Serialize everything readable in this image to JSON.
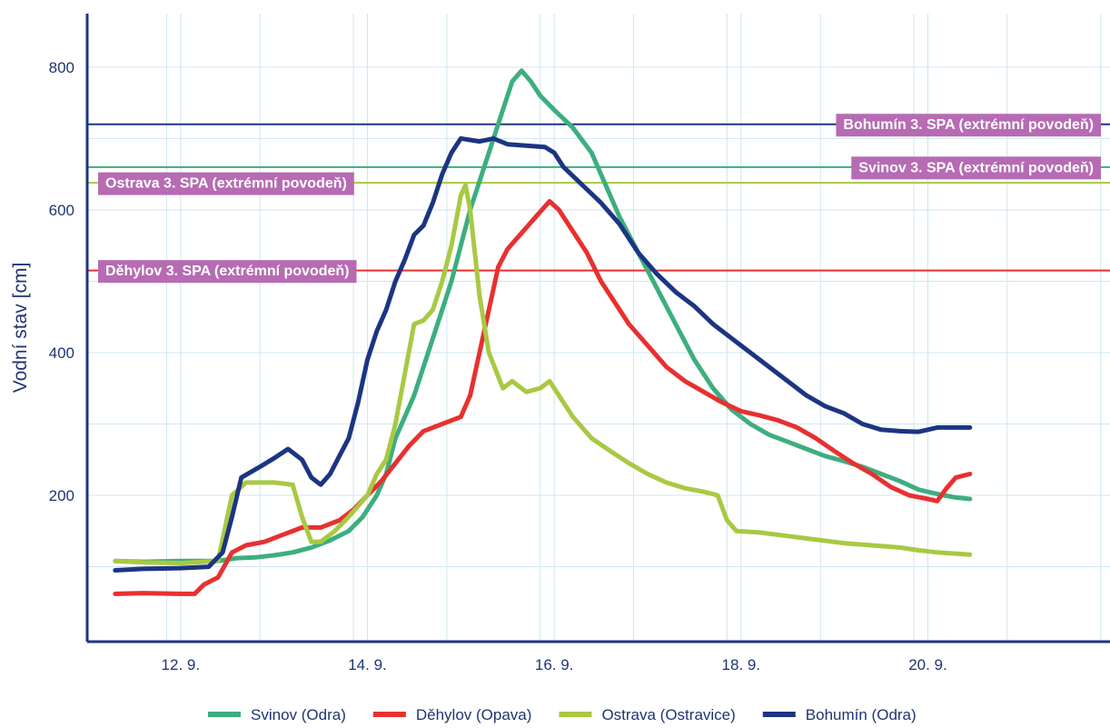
{
  "chart_data": {
    "type": "line",
    "title": "",
    "xlabel": "",
    "ylabel": "Vodní stav [cm]",
    "xlim": [
      11.0,
      21.95
    ],
    "ylim": [
      -5,
      875
    ],
    "x_ticks": [
      {
        "x": 12,
        "label": "12. 9."
      },
      {
        "x": 14,
        "label": "14. 9."
      },
      {
        "x": 16,
        "label": "16. 9."
      },
      {
        "x": 18,
        "label": "18. 9."
      },
      {
        "x": 20,
        "label": "20. 9."
      }
    ],
    "y_ticks": [
      200,
      400,
      600,
      800
    ],
    "x_grid": [
      11.85,
      12.85,
      13.85,
      14.85,
      15.85,
      16.85,
      17.85,
      18.85,
      19.85,
      20.85,
      21.85
    ],
    "y_grid": [
      100,
      300,
      500,
      700
    ],
    "grid": true,
    "legend_position": "bottom",
    "series": [
      {
        "name": "Svinov (Odra)",
        "color": "#3dae7f",
        "points": [
          [
            11.3,
            108
          ],
          [
            11.6,
            107
          ],
          [
            12.0,
            108
          ],
          [
            12.4,
            108
          ],
          [
            12.6,
            112
          ],
          [
            12.8,
            113
          ],
          [
            13.0,
            116
          ],
          [
            13.2,
            120
          ],
          [
            13.4,
            127
          ],
          [
            13.6,
            137
          ],
          [
            13.8,
            150
          ],
          [
            13.95,
            170
          ],
          [
            14.1,
            200
          ],
          [
            14.2,
            230
          ],
          [
            14.3,
            280
          ],
          [
            14.4,
            310
          ],
          [
            14.5,
            340
          ],
          [
            14.6,
            380
          ],
          [
            14.7,
            420
          ],
          [
            14.8,
            460
          ],
          [
            14.9,
            500
          ],
          [
            15.0,
            550
          ],
          [
            15.1,
            600
          ],
          [
            15.2,
            640
          ],
          [
            15.3,
            680
          ],
          [
            15.45,
            740
          ],
          [
            15.55,
            780
          ],
          [
            15.65,
            795
          ],
          [
            15.75,
            780
          ],
          [
            15.85,
            760
          ],
          [
            16.0,
            740
          ],
          [
            16.2,
            715
          ],
          [
            16.4,
            680
          ],
          [
            16.5,
            650
          ],
          [
            16.7,
            590
          ],
          [
            16.9,
            540
          ],
          [
            17.1,
            490
          ],
          [
            17.3,
            440
          ],
          [
            17.5,
            390
          ],
          [
            17.7,
            350
          ],
          [
            17.9,
            320
          ],
          [
            18.1,
            300
          ],
          [
            18.3,
            285
          ],
          [
            18.5,
            275
          ],
          [
            18.7,
            265
          ],
          [
            18.9,
            255
          ],
          [
            19.1,
            248
          ],
          [
            19.3,
            240
          ],
          [
            19.5,
            230
          ],
          [
            19.7,
            220
          ],
          [
            19.9,
            208
          ],
          [
            20.1,
            202
          ],
          [
            20.3,
            197
          ],
          [
            20.45,
            195
          ]
        ]
      },
      {
        "name": "Děhylov (Opava)",
        "color": "#e83030",
        "points": [
          [
            11.3,
            62
          ],
          [
            11.6,
            63
          ],
          [
            12.0,
            62
          ],
          [
            12.15,
            62
          ],
          [
            12.25,
            75
          ],
          [
            12.4,
            85
          ],
          [
            12.55,
            120
          ],
          [
            12.7,
            130
          ],
          [
            12.9,
            135
          ],
          [
            13.1,
            145
          ],
          [
            13.3,
            155
          ],
          [
            13.5,
            155
          ],
          [
            13.7,
            165
          ],
          [
            13.85,
            180
          ],
          [
            14.0,
            200
          ],
          [
            14.15,
            220
          ],
          [
            14.3,
            245
          ],
          [
            14.45,
            270
          ],
          [
            14.6,
            290
          ],
          [
            14.8,
            300
          ],
          [
            15.0,
            310
          ],
          [
            15.1,
            340
          ],
          [
            15.2,
            400
          ],
          [
            15.3,
            460
          ],
          [
            15.4,
            520
          ],
          [
            15.5,
            545
          ],
          [
            15.6,
            560
          ],
          [
            15.7,
            575
          ],
          [
            15.8,
            590
          ],
          [
            15.95,
            612
          ],
          [
            16.05,
            600
          ],
          [
            16.2,
            570
          ],
          [
            16.35,
            540
          ],
          [
            16.5,
            500
          ],
          [
            16.65,
            470
          ],
          [
            16.8,
            440
          ],
          [
            17.0,
            410
          ],
          [
            17.2,
            380
          ],
          [
            17.4,
            360
          ],
          [
            17.6,
            345
          ],
          [
            17.8,
            330
          ],
          [
            18.0,
            318
          ],
          [
            18.2,
            312
          ],
          [
            18.4,
            305
          ],
          [
            18.6,
            295
          ],
          [
            18.8,
            280
          ],
          [
            19.0,
            262
          ],
          [
            19.2,
            245
          ],
          [
            19.4,
            230
          ],
          [
            19.6,
            212
          ],
          [
            19.8,
            200
          ],
          [
            20.0,
            195
          ],
          [
            20.1,
            192
          ],
          [
            20.2,
            210
          ],
          [
            20.3,
            225
          ],
          [
            20.45,
            230
          ]
        ]
      },
      {
        "name": "Ostrava (Ostravice)",
        "color": "#a8c943",
        "points": [
          [
            11.3,
            108
          ],
          [
            11.6,
            106
          ],
          [
            12.0,
            105
          ],
          [
            12.4,
            108
          ],
          [
            12.55,
            200
          ],
          [
            12.7,
            218
          ],
          [
            13.0,
            218
          ],
          [
            13.2,
            215
          ],
          [
            13.3,
            170
          ],
          [
            13.4,
            135
          ],
          [
            13.5,
            135
          ],
          [
            13.65,
            150
          ],
          [
            13.8,
            170
          ],
          [
            14.0,
            200
          ],
          [
            14.1,
            230
          ],
          [
            14.2,
            250
          ],
          [
            14.3,
            300
          ],
          [
            14.4,
            370
          ],
          [
            14.5,
            440
          ],
          [
            14.6,
            445
          ],
          [
            14.7,
            460
          ],
          [
            14.8,
            500
          ],
          [
            14.9,
            550
          ],
          [
            15.0,
            620
          ],
          [
            15.05,
            635
          ],
          [
            15.1,
            600
          ],
          [
            15.2,
            480
          ],
          [
            15.3,
            400
          ],
          [
            15.45,
            350
          ],
          [
            15.55,
            360
          ],
          [
            15.7,
            345
          ],
          [
            15.85,
            350
          ],
          [
            15.95,
            360
          ],
          [
            16.05,
            340
          ],
          [
            16.2,
            310
          ],
          [
            16.4,
            280
          ],
          [
            16.6,
            262
          ],
          [
            16.8,
            245
          ],
          [
            17.0,
            230
          ],
          [
            17.2,
            218
          ],
          [
            17.4,
            210
          ],
          [
            17.6,
            205
          ],
          [
            17.75,
            200
          ],
          [
            17.85,
            165
          ],
          [
            17.95,
            150
          ],
          [
            18.2,
            148
          ],
          [
            18.5,
            143
          ],
          [
            18.8,
            138
          ],
          [
            19.1,
            133
          ],
          [
            19.4,
            130
          ],
          [
            19.7,
            127
          ],
          [
            19.9,
            123
          ],
          [
            20.1,
            120
          ],
          [
            20.45,
            117
          ]
        ]
      },
      {
        "name": "Bohumín (Odra)",
        "color": "#1c3582",
        "points": [
          [
            11.3,
            95
          ],
          [
            11.6,
            97
          ],
          [
            12.0,
            98
          ],
          [
            12.3,
            100
          ],
          [
            12.45,
            120
          ],
          [
            12.55,
            170
          ],
          [
            12.65,
            225
          ],
          [
            12.85,
            240
          ],
          [
            13.0,
            252
          ],
          [
            13.15,
            265
          ],
          [
            13.3,
            250
          ],
          [
            13.4,
            225
          ],
          [
            13.5,
            215
          ],
          [
            13.6,
            230
          ],
          [
            13.7,
            255
          ],
          [
            13.8,
            280
          ],
          [
            13.9,
            330
          ],
          [
            14.0,
            390
          ],
          [
            14.1,
            430
          ],
          [
            14.2,
            460
          ],
          [
            14.3,
            500
          ],
          [
            14.4,
            530
          ],
          [
            14.5,
            565
          ],
          [
            14.6,
            578
          ],
          [
            14.7,
            610
          ],
          [
            14.8,
            650
          ],
          [
            14.9,
            680
          ],
          [
            15.0,
            700
          ],
          [
            15.1,
            698
          ],
          [
            15.2,
            696
          ],
          [
            15.35,
            700
          ],
          [
            15.5,
            692
          ],
          [
            15.7,
            690
          ],
          [
            15.9,
            688
          ],
          [
            16.0,
            680
          ],
          [
            16.1,
            660
          ],
          [
            16.3,
            635
          ],
          [
            16.5,
            610
          ],
          [
            16.7,
            580
          ],
          [
            16.9,
            540
          ],
          [
            17.1,
            510
          ],
          [
            17.3,
            485
          ],
          [
            17.5,
            465
          ],
          [
            17.7,
            440
          ],
          [
            17.9,
            420
          ],
          [
            18.1,
            400
          ],
          [
            18.3,
            380
          ],
          [
            18.5,
            360
          ],
          [
            18.7,
            340
          ],
          [
            18.9,
            325
          ],
          [
            19.1,
            315
          ],
          [
            19.3,
            300
          ],
          [
            19.5,
            292
          ],
          [
            19.7,
            290
          ],
          [
            19.9,
            289
          ],
          [
            20.1,
            295
          ],
          [
            20.45,
            295
          ]
        ]
      }
    ],
    "thresholds": [
      {
        "name": "Bohumín 3. SPA (extrémní povodeň)",
        "y": 720,
        "color": "#1c3582",
        "label_anchor": "right"
      },
      {
        "name": "Svinov 3. SPA (extrémní povodeň)",
        "y": 660,
        "color": "#3dae7f",
        "label_anchor": "right"
      },
      {
        "name": "Ostrava 3. SPA (extrémní povodeň)",
        "y": 638,
        "color": "#a8c943",
        "label_anchor": "left"
      },
      {
        "name": "Děhylov 3. SPA (extrémní povodeň)",
        "y": 515,
        "color": "#e83030",
        "label_anchor": "left"
      }
    ],
    "label_box_color": "#b66bb3",
    "axis_color": "#1c3582",
    "grid_color": "#cfe6f0"
  }
}
